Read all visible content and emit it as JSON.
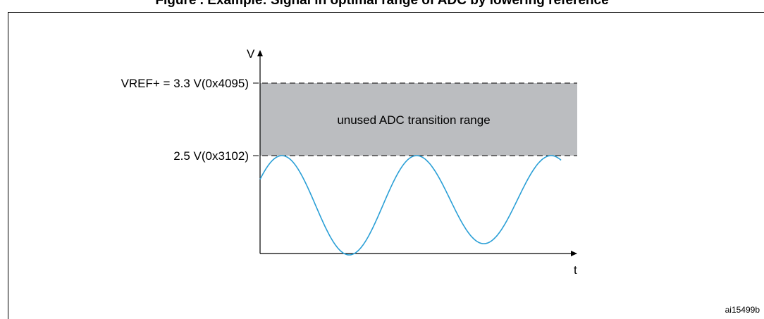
{
  "figure": {
    "title": "Figure . Example: Signal in optimal range of ADC by lowering reference",
    "ref_id": "ai15499b"
  },
  "axes": {
    "y_label": "V",
    "x_label": "t"
  },
  "levels": {
    "vref_label": "VREF+ = 3.3 V(0x4095)",
    "signal_max_label": "2.5 V(0x3102)"
  },
  "region": {
    "label": "unused ADC transition range",
    "fill_color": "#bbbdc0"
  },
  "signal": {
    "color": "#2a9fd6"
  }
}
